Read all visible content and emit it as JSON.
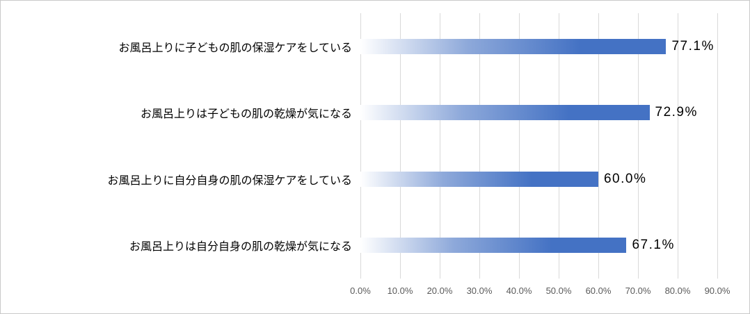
{
  "chart_data": {
    "type": "bar",
    "orientation": "horizontal",
    "title": "",
    "categories": [
      "お風呂上りに子どもの肌の保湿ケアをしている",
      "お風呂上りは子どもの肌の乾燥が気になる",
      "お風呂上りに自分自身の肌の保湿ケアをしている",
      "お風呂上りは自分自身の肌の乾燥が気になる"
    ],
    "values": [
      77.1,
      72.9,
      60.0,
      67.1
    ],
    "value_labels": [
      "77.1%",
      "72.9%",
      "60.0%",
      "67.1%"
    ],
    "xlabel": "",
    "ylabel": "",
    "xlim": [
      0,
      90
    ],
    "x_tick_values": [
      0,
      10,
      20,
      30,
      40,
      50,
      60,
      70,
      80,
      90
    ],
    "x_tick_labels": [
      "0.0%",
      "10.0%",
      "20.0%",
      "30.0%",
      "40.0%",
      "50.0%",
      "60.0%",
      "70.0%",
      "80.0%",
      "90.0%"
    ],
    "grid": true,
    "legend_position": "none",
    "colors": {
      "bar_gradient_start": "#ffffff",
      "bar_gradient_mid": "#8ea9da",
      "bar_gradient_end": "#4472c4",
      "gridline": "#d9d9d9",
      "category_text": "#000000",
      "value_text": "#000000",
      "tick_text": "#595959",
      "frame_border": "#c9c9c9",
      "background": "#ffffff"
    }
  }
}
